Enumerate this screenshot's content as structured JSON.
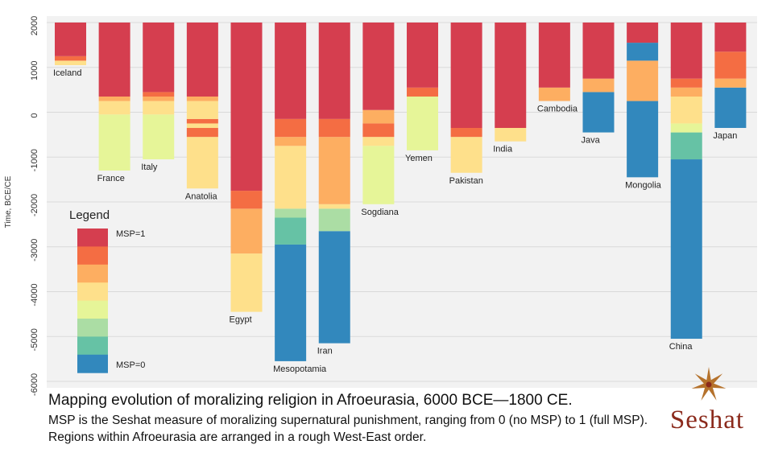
{
  "chart_data": {
    "type": "bar",
    "ylabel": "Time, BCE/CE",
    "ylim": [
      -6000,
      2000
    ],
    "yticks": [
      2000,
      1000,
      0,
      -1000,
      -2000,
      -3000,
      -4000,
      -5000,
      -6000
    ],
    "grid": true,
    "legend": {
      "title": "Legend",
      "top_label": "MSP=1",
      "bottom_label": "MSP=0",
      "placement": "lower-left",
      "colors": [
        "#d53e4f",
        "#f46d43",
        "#fdae61",
        "#fee08b",
        "#e6f598",
        "#abdda4",
        "#66c2a5",
        "#3288bd"
      ]
    },
    "msp_colors": {
      "1": "#d53e4f",
      "0.875": "#f46d43",
      "0.75": "#fdae61",
      "0.625": "#fee08b",
      "0.5": "#e6f598",
      "0.375": "#abdda4",
      "0.25": "#66c2a5",
      "0": "#3288bd"
    },
    "regions": [
      {
        "name": "Iceland",
        "segments": [
          {
            "from": 1050,
            "to": 1150,
            "msp": "0.625"
          },
          {
            "from": 1150,
            "to": 1250,
            "msp": "0.875"
          },
          {
            "from": 1250,
            "to": 2000,
            "msp": "1"
          }
        ]
      },
      {
        "name": "France",
        "segments": [
          {
            "from": -1300,
            "to": -50,
            "msp": "0.5"
          },
          {
            "from": -50,
            "to": 250,
            "msp": "0.625"
          },
          {
            "from": 250,
            "to": 350,
            "msp": "0.75"
          },
          {
            "from": 350,
            "to": 2000,
            "msp": "1"
          }
        ]
      },
      {
        "name": "Italy",
        "segments": [
          {
            "from": -1050,
            "to": -50,
            "msp": "0.5"
          },
          {
            "from": -50,
            "to": 250,
            "msp": "0.625"
          },
          {
            "from": 250,
            "to": 350,
            "msp": "0.75"
          },
          {
            "from": 350,
            "to": 450,
            "msp": "0.875"
          },
          {
            "from": 450,
            "to": 2000,
            "msp": "1"
          }
        ]
      },
      {
        "name": "Anatolia",
        "segments": [
          {
            "from": -1700,
            "to": -550,
            "msp": "0.625"
          },
          {
            "from": -550,
            "to": -350,
            "msp": "0.875"
          },
          {
            "from": -350,
            "to": -250,
            "msp": "0.625"
          },
          {
            "from": -250,
            "to": -150,
            "msp": "0.875"
          },
          {
            "from": -150,
            "to": 250,
            "msp": "0.625"
          },
          {
            "from": 250,
            "to": 350,
            "msp": "0.75"
          },
          {
            "from": 350,
            "to": 2000,
            "msp": "1"
          }
        ]
      },
      {
        "name": "Egypt",
        "segments": [
          {
            "from": -4450,
            "to": -3150,
            "msp": "0.625"
          },
          {
            "from": -3150,
            "to": -2150,
            "msp": "0.75"
          },
          {
            "from": -2150,
            "to": -1750,
            "msp": "0.875"
          },
          {
            "from": -1750,
            "to": 2000,
            "msp": "1"
          }
        ]
      },
      {
        "name": "Mesopotamia",
        "segments": [
          {
            "from": -5550,
            "to": -2950,
            "msp": "0"
          },
          {
            "from": -2950,
            "to": -2350,
            "msp": "0.25"
          },
          {
            "from": -2350,
            "to": -2150,
            "msp": "0.375"
          },
          {
            "from": -2150,
            "to": -750,
            "msp": "0.625"
          },
          {
            "from": -750,
            "to": -550,
            "msp": "0.75"
          },
          {
            "from": -550,
            "to": -150,
            "msp": "0.875"
          },
          {
            "from": -150,
            "to": 2000,
            "msp": "1"
          }
        ]
      },
      {
        "name": "Iran",
        "segments": [
          {
            "from": -5150,
            "to": -2650,
            "msp": "0"
          },
          {
            "from": -2650,
            "to": -2150,
            "msp": "0.375"
          },
          {
            "from": -2150,
            "to": -2050,
            "msp": "0.625"
          },
          {
            "from": -2050,
            "to": -550,
            "msp": "0.75"
          },
          {
            "from": -550,
            "to": -150,
            "msp": "0.875"
          },
          {
            "from": -150,
            "to": 2000,
            "msp": "1"
          }
        ]
      },
      {
        "name": "Sogdiana",
        "segments": [
          {
            "from": -2050,
            "to": -750,
            "msp": "0.5"
          },
          {
            "from": -750,
            "to": -550,
            "msp": "0.625"
          },
          {
            "from": -550,
            "to": -250,
            "msp": "0.875"
          },
          {
            "from": -250,
            "to": 50,
            "msp": "0.75"
          },
          {
            "from": 50,
            "to": 2000,
            "msp": "1"
          }
        ]
      },
      {
        "name": "Yemen",
        "segments": [
          {
            "from": -850,
            "to": 350,
            "msp": "0.5"
          },
          {
            "from": 350,
            "to": 550,
            "msp": "0.875"
          },
          {
            "from": 550,
            "to": 2000,
            "msp": "1"
          }
        ]
      },
      {
        "name": "Pakistan",
        "segments": [
          {
            "from": -1350,
            "to": -550,
            "msp": "0.625"
          },
          {
            "from": -550,
            "to": -350,
            "msp": "0.875"
          },
          {
            "from": -350,
            "to": 2000,
            "msp": "1"
          }
        ]
      },
      {
        "name": "India",
        "segments": [
          {
            "from": -650,
            "to": -350,
            "msp": "0.625"
          },
          {
            "from": -350,
            "to": 2000,
            "msp": "1"
          }
        ]
      },
      {
        "name": "Cambodia",
        "segments": [
          {
            "from": 250,
            "to": 550,
            "msp": "0.75"
          },
          {
            "from": 550,
            "to": 2000,
            "msp": "1"
          }
        ]
      },
      {
        "name": "Java",
        "segments": [
          {
            "from": -450,
            "to": 450,
            "msp": "0"
          },
          {
            "from": 450,
            "to": 750,
            "msp": "0.75"
          },
          {
            "from": 750,
            "to": 2000,
            "msp": "1"
          }
        ]
      },
      {
        "name": "Mongolia",
        "segments": [
          {
            "from": -1450,
            "to": 250,
            "msp": "0"
          },
          {
            "from": 250,
            "to": 1150,
            "msp": "0.75"
          },
          {
            "from": 1150,
            "to": 1550,
            "msp": "0"
          },
          {
            "from": 1550,
            "to": 2000,
            "msp": "1"
          }
        ]
      },
      {
        "name": "China",
        "segments": [
          {
            "from": -5050,
            "to": -1050,
            "msp": "0"
          },
          {
            "from": -1050,
            "to": -450,
            "msp": "0.25"
          },
          {
            "from": -450,
            "to": -250,
            "msp": "0.5"
          },
          {
            "from": -250,
            "to": 350,
            "msp": "0.625"
          },
          {
            "from": 350,
            "to": 550,
            "msp": "0.75"
          },
          {
            "from": 550,
            "to": 750,
            "msp": "0.875"
          },
          {
            "from": 750,
            "to": 2000,
            "msp": "1"
          }
        ]
      },
      {
        "name": "Japan",
        "segments": [
          {
            "from": -350,
            "to": 550,
            "msp": "0"
          },
          {
            "from": 550,
            "to": 750,
            "msp": "0.75"
          },
          {
            "from": 750,
            "to": 1350,
            "msp": "0.875"
          },
          {
            "from": 1350,
            "to": 2000,
            "msp": "1"
          }
        ]
      }
    ]
  },
  "caption": {
    "title": "Mapping evolution of moralizing religion in Afroeurasia, 6000 BCE—1800 CE.",
    "subtitle": "MSP is the Seshat measure of moralizing supernatural punishment, ranging from 0 (no MSP) to 1 (full MSP). Regions within Afroeurasia are arranged in a rough West-East order."
  },
  "logo": {
    "text": "Seshat",
    "icon": "seshat-star-icon",
    "color": "#8b2a1c"
  }
}
